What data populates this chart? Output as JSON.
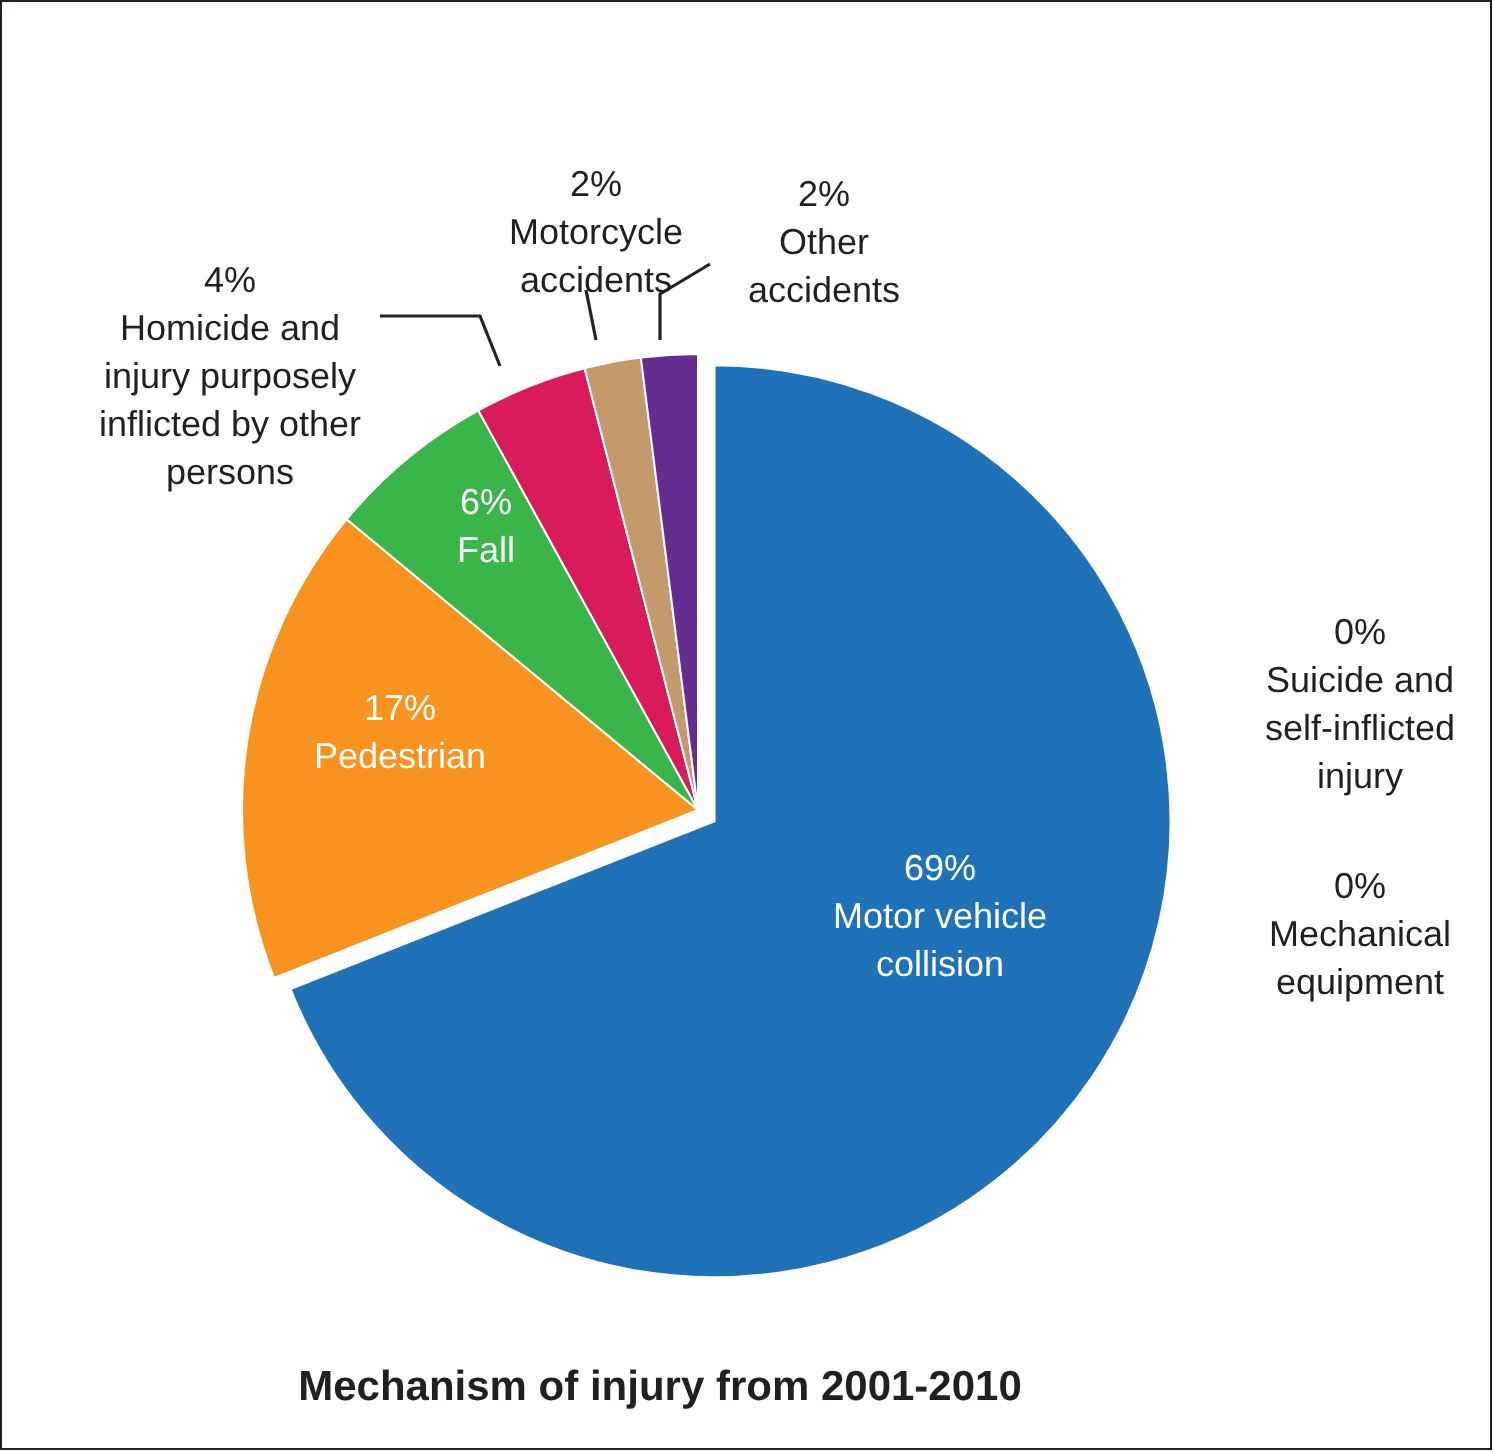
{
  "chart_data": {
    "type": "pie",
    "title": "Mechanism of injury from 2001-2010",
    "categories": [
      "Motor vehicle collision",
      "Pedestrian",
      "Fall",
      "Homicide and injury purposely inflicted by other persons",
      "Motorcycle accidents",
      "Other accidents",
      "Suicide and self-inflicted injury",
      "Mechanical equipment"
    ],
    "values": [
      69,
      17,
      6,
      4,
      2,
      2,
      0,
      0
    ],
    "value_labels": [
      "69%",
      "17%",
      "6%",
      "4%",
      "2%",
      "2%",
      "0%",
      "0%"
    ],
    "colors": [
      "#1f72b8",
      "#f7931e",
      "#3ab54a",
      "#d91b5c",
      "#c49a6c",
      "#662d91",
      "#9e9e9e",
      "#7a7a7a"
    ]
  }
}
